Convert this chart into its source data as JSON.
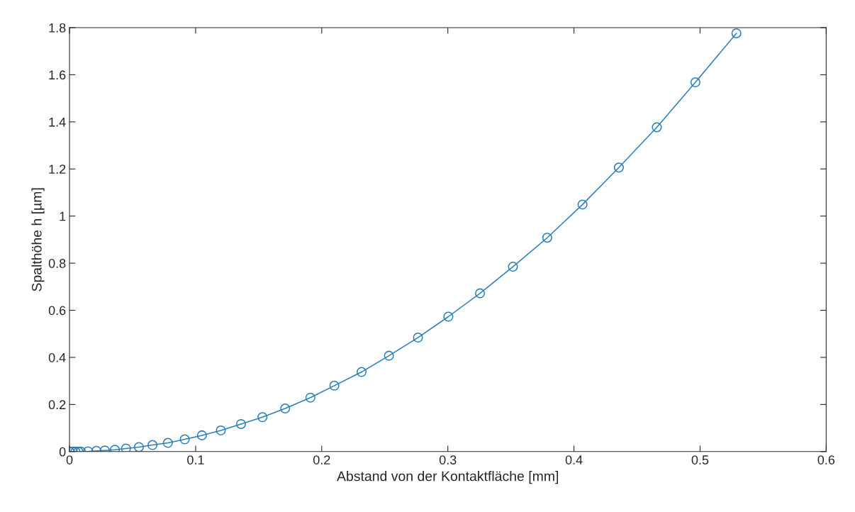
{
  "chart_data": {
    "type": "line",
    "xlabel": "Abstand von der Kontaktfläche [mm]",
    "ylabel": "Spalthöhe h [µm]",
    "xlim": [
      0,
      0.6
    ],
    "xticks": [
      0,
      0.1,
      0.2,
      0.3,
      0.4,
      0.5,
      0.6
    ],
    "ylim": [
      0,
      1.8
    ],
    "yticks": [
      0,
      0.2,
      0.4,
      0.6,
      0.8,
      1,
      1.2,
      1.4,
      1.6,
      1.8
    ],
    "grid": false,
    "marker": "circle",
    "line_style": "solid",
    "series": [
      {
        "color": "#2a7fb8",
        "x": [
          0,
          0.0025,
          0.0047,
          0.007,
          0.009,
          0.0147,
          0.0213,
          0.028,
          0.036,
          0.0448,
          0.055,
          0.0658,
          0.078,
          0.0914,
          0.105,
          0.12,
          0.136,
          0.153,
          0.171,
          0.191,
          0.21,
          0.2316,
          0.2533,
          0.2763,
          0.3004,
          0.3255,
          0.3516,
          0.3788,
          0.4068,
          0.4356,
          0.4657,
          0.4963,
          0.5288
        ],
        "values": [
          0,
          0,
          0,
          0,
          0,
          0.001,
          0.003,
          0.005,
          0.008,
          0.013,
          0.019,
          0.028,
          0.037,
          0.052,
          0.069,
          0.09,
          0.117,
          0.146,
          0.183,
          0.229,
          0.28,
          0.338,
          0.407,
          0.484,
          0.573,
          0.672,
          0.785,
          0.908,
          1.049,
          1.206,
          1.377,
          1.568,
          1.776
        ]
      }
    ]
  }
}
